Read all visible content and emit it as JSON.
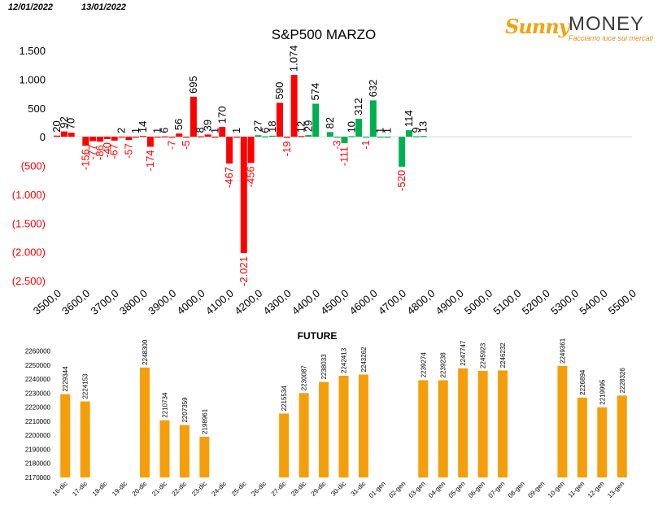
{
  "header": {
    "date_left": "12/01/2022",
    "date_right": "13/01/2022"
  },
  "logo": {
    "brand_script": "Sunny",
    "brand_word": "MONEY",
    "tagline": "Facciamo luce sui mercati"
  },
  "colors": {
    "positive": "#00b050",
    "negative": "#ff0000",
    "future_bar": "#f59e0b",
    "text": "#000000",
    "neg_text": "#ff0000"
  },
  "chart_data": [
    {
      "type": "bar",
      "title": "S&P500 MARZO",
      "ylim": [
        -2500,
        1500
      ],
      "y_ticks": [
        1500,
        1000,
        500,
        0,
        -500,
        -1000,
        -1500,
        -2000,
        -2500
      ],
      "y_tick_labels": [
        "1.500",
        "1.000",
        "500",
        "0",
        "(500)",
        "(1.000)",
        "(1.500)",
        "(2.000)",
        "(2.500)"
      ],
      "x_tick_labels": [
        "3500,0",
        "3600,0",
        "3700,0",
        "3800,0",
        "3900,0",
        "4000,0",
        "4100,0",
        "4200,0",
        "4300,0",
        "4400,0",
        "4500,0",
        "4600,0",
        "4700,0",
        "4800,0",
        "4900,0",
        "5000,0",
        "5100,0",
        "5200,0",
        "5300,0",
        "5400,0",
        "5500,0"
      ],
      "xlim": [
        3500,
        5500
      ],
      "series": [
        {
          "color": "negative",
          "points": [
            {
              "x": 3500,
              "y": 20
            },
            {
              "x": 3525,
              "y": 92
            },
            {
              "x": 3550,
              "y": 70
            },
            {
              "x": 3600,
              "y": -156
            },
            {
              "x": 3625,
              "y": -77
            },
            {
              "x": 3650,
              "y": -86
            },
            {
              "x": 3675,
              "y": -40
            },
            {
              "x": 3700,
              "y": -67
            },
            {
              "x": 3725,
              "y": 2
            },
            {
              "x": 3750,
              "y": -57
            },
            {
              "x": 3775,
              "y": 1
            },
            {
              "x": 3800,
              "y": 14
            },
            {
              "x": 3825,
              "y": -174
            },
            {
              "x": 3850,
              "y": 1
            },
            {
              "x": 3875,
              "y": 6
            },
            {
              "x": 3900,
              "y": -7
            },
            {
              "x": 3925,
              "y": 56
            },
            {
              "x": 3950,
              "y": -5
            },
            {
              "x": 3975,
              "y": 695
            },
            {
              "x": 4000,
              "y": 8
            },
            {
              "x": 4025,
              "y": 39
            },
            {
              "x": 4050,
              "y": 1
            },
            {
              "x": 4075,
              "y": 170
            },
            {
              "x": 4100,
              "y": -467
            },
            {
              "x": 4125,
              "y": 1
            },
            {
              "x": 4150,
              "y": -2021
            },
            {
              "x": 4175,
              "y": -456
            },
            {
              "x": 4275,
              "y": 590
            },
            {
              "x": 4300,
              "y": -19
            },
            {
              "x": 4325,
              "y": 1074
            },
            {
              "x": 4350,
              "y": 12
            }
          ]
        },
        {
          "color": "positive",
          "points": [
            {
              "x": 4200,
              "y": 27
            },
            {
              "x": 4225,
              "y": 6
            },
            {
              "x": 4250,
              "y": 18
            },
            {
              "x": 4375,
              "y": 29
            },
            {
              "x": 4400,
              "y": 574
            },
            {
              "x": 4450,
              "y": 82
            },
            {
              "x": 4475,
              "y": -3
            },
            {
              "x": 4500,
              "y": -111
            },
            {
              "x": 4525,
              "y": 10
            },
            {
              "x": 4550,
              "y": 312
            },
            {
              "x": 4575,
              "y": -1
            },
            {
              "x": 4600,
              "y": 632
            },
            {
              "x": 4625,
              "y": 1
            },
            {
              "x": 4650,
              "y": 1
            },
            {
              "x": 4700,
              "y": -520
            },
            {
              "x": 4725,
              "y": 114
            },
            {
              "x": 4750,
              "y": 9
            },
            {
              "x": 4775,
              "y": 13
            }
          ]
        }
      ]
    },
    {
      "type": "bar",
      "title": "FUTURE",
      "ylim": [
        2170000,
        2265000
      ],
      "y_ticks": [
        2170000,
        2180000,
        2190000,
        2200000,
        2210000,
        2220000,
        2230000,
        2240000,
        2250000,
        2260000
      ],
      "categories": [
        "16-dic",
        "17-dic",
        "18-dic",
        "19-dic",
        "20-dic",
        "21-dic",
        "22-dic",
        "23-dic",
        "24-dic",
        "25-dic",
        "26-dic",
        "27-dic",
        "28-dic",
        "29-dic",
        "30-dic",
        "31-dic",
        "01-gen",
        "02-gen",
        "03-gen",
        "04-gen",
        "05-gen",
        "06-gen",
        "07-gen",
        "08-gen",
        "09-gen",
        "10-gen",
        "11-gen",
        "12-gen",
        "13-gen"
      ],
      "values": [
        2229344,
        2224153,
        null,
        null,
        2248300,
        2210734,
        2207359,
        2198961,
        null,
        null,
        null,
        2215534,
        2230087,
        2238033,
        2242413,
        2243262,
        null,
        null,
        2239274,
        2239238,
        2247747,
        2245923,
        2246232,
        null,
        null,
        2249361,
        2226894,
        2219995,
        2228326
      ]
    }
  ]
}
